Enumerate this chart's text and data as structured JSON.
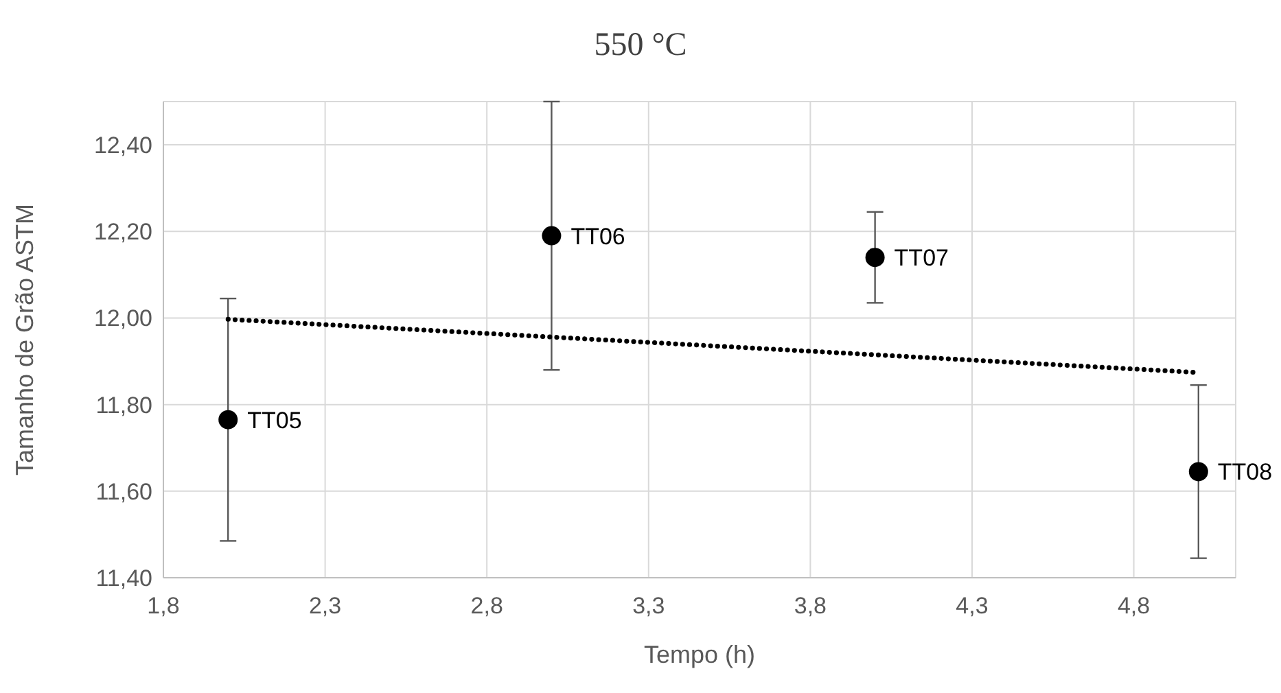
{
  "chart_data": {
    "type": "scatter",
    "title": "550 °C",
    "xlabel": "Tempo (h)",
    "ylabel": "Tamanho de Grão ASTM",
    "x": [
      2.0,
      3.0,
      4.0,
      5.0
    ],
    "series": [
      {
        "color": "#000000",
        "marker": "circle",
        "values": [
          11.765,
          12.19,
          12.14,
          11.645
        ],
        "errors": [
          0.28,
          0.31,
          0.105,
          0.2
        ]
      },
      {
        "type": "line",
        "color": "#000000",
        "line_style": "dotted",
        "x": [
          2.0,
          5.0
        ],
        "values": [
          11.997,
          11.874
        ]
      }
    ],
    "annotations": [
      {
        "text": "TT05",
        "x": 2.0,
        "y": 11.765
      },
      {
        "text": "TT06",
        "x": 3.0,
        "y": 12.19
      },
      {
        "text": "TT07",
        "x": 4.0,
        "y": 12.14
      },
      {
        "text": "TT08",
        "x": 5.0,
        "y": 11.645
      }
    ],
    "xlim": [
      1.8,
      5.115
    ],
    "xticks": [
      {
        "value": 1.8,
        "label": "1,8"
      },
      {
        "value": 2.3,
        "label": "2,3"
      },
      {
        "value": 2.8,
        "label": "2,8"
      },
      {
        "value": 3.3,
        "label": "3,3"
      },
      {
        "value": 3.8,
        "label": "3,8"
      },
      {
        "value": 4.3,
        "label": "4,3"
      },
      {
        "value": 4.8,
        "label": "4,8"
      }
    ],
    "ylim": [
      11.4,
      12.5
    ],
    "yticks": [
      {
        "value": 11.4,
        "label": "11,40"
      },
      {
        "value": 11.6,
        "label": "11,60"
      },
      {
        "value": 11.8,
        "label": "11,80"
      },
      {
        "value": 12.0,
        "label": "12,00"
      },
      {
        "value": 12.2,
        "label": "12,20"
      },
      {
        "value": 12.4,
        "label": "12,40"
      }
    ],
    "grid": true
  }
}
